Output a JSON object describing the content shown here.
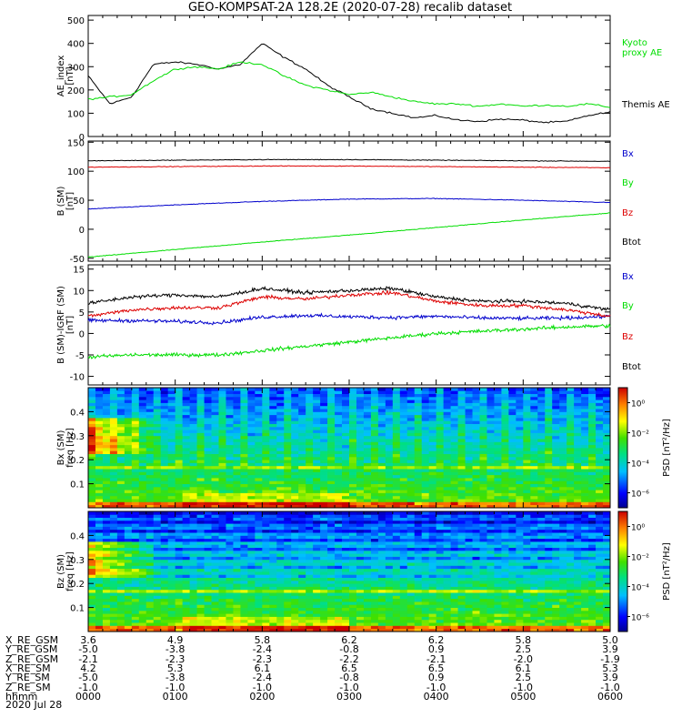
{
  "title": "GEO-KOMPSAT-2A 128.2E (2020-07-28) recalib dataset",
  "panels": {
    "ae": {
      "ylabel1": "AE_index",
      "ylabel2": "[nT]",
      "yticks": [
        "0",
        "100",
        "200",
        "300",
        "400",
        "500"
      ],
      "legend": [
        {
          "text": "Kyoto",
          "color": "#00dd00"
        },
        {
          "text": "proxy AE",
          "color": "#00dd00"
        },
        {
          "text": "Themis AE",
          "color": "#000000"
        }
      ]
    },
    "bsm": {
      "ylabel1": "B (SM)",
      "ylabel2": "[nT]",
      "yticks": [
        "-50",
        "0",
        "50",
        "100",
        "150"
      ],
      "legend": [
        {
          "text": "Bx",
          "color": "#0000cc"
        },
        {
          "text": "By",
          "color": "#00dd00"
        },
        {
          "text": "Bz",
          "color": "#dd0000"
        },
        {
          "text": "Btot",
          "color": "#000000"
        }
      ]
    },
    "bigrf": {
      "ylabel1": "B (SM)-IGRF (SM)",
      "ylabel2": "[nT]",
      "yticks": [
        "-10",
        "-5",
        "0",
        "5",
        "10",
        "15"
      ],
      "legend": [
        {
          "text": "Bx",
          "color": "#0000cc"
        },
        {
          "text": "By",
          "color": "#00dd00"
        },
        {
          "text": "Bz",
          "color": "#dd0000"
        },
        {
          "text": "Btot",
          "color": "#000000"
        }
      ]
    },
    "spec_bx": {
      "ylabel1": "Bx (SM)",
      "ylabel2": "freq [Hz]",
      "yticks": [
        "0.1",
        "0.2",
        "0.3",
        "0.4"
      ],
      "cbar_label": "PSD [nT²/Hz]",
      "cbar_ticks": [
        "10⁰",
        "10⁻²",
        "10⁻⁴",
        "10⁻⁶"
      ]
    },
    "spec_bz": {
      "ylabel1": "Bz (SM)",
      "ylabel2": "freq [Hz]",
      "yticks": [
        "0.1",
        "0.2",
        "0.3",
        "0.4"
      ],
      "cbar_label": "PSD [nT²/Hz]",
      "cbar_ticks": [
        "10⁰",
        "10⁻²",
        "10⁻⁴",
        "10⁻⁶"
      ]
    }
  },
  "footer": {
    "rows": [
      {
        "label": "X_RE_GSM",
        "values": [
          "3.6",
          "4.9",
          "5.8",
          "6.2",
          "6.2",
          "5.8",
          "5.0"
        ]
      },
      {
        "label": "Y_RE_GSM",
        "values": [
          "-5.0",
          "-3.8",
          "-2.4",
          "-0.8",
          "0.9",
          "2.5",
          "3.9"
        ]
      },
      {
        "label": "Z_RE_GSM",
        "values": [
          "-2.1",
          "-2.3",
          "-2.3",
          "-2.2",
          "-2.1",
          "-2.0",
          "-1.9"
        ]
      },
      {
        "label": "X_RE_SM",
        "values": [
          "4.2",
          "5.3",
          "6.1",
          "6.5",
          "6.5",
          "6.1",
          "5.3"
        ]
      },
      {
        "label": "Y_RE_SM",
        "values": [
          "-5.0",
          "-3.8",
          "-2.4",
          "-0.8",
          "0.9",
          "2.5",
          "3.9"
        ]
      },
      {
        "label": "Z_RE_SM",
        "values": [
          "-1.0",
          "-1.0",
          "-1.0",
          "-1.0",
          "-1.0",
          "-1.0",
          "-1.0"
        ]
      },
      {
        "label": "hhmm",
        "values": [
          "0000",
          "0100",
          "0200",
          "0300",
          "0400",
          "0500",
          "0600"
        ]
      }
    ],
    "date": "2020 Jul 28"
  },
  "chart_data": [
    {
      "type": "line",
      "ylabel": "AE_index [nT]",
      "ylim": [
        0,
        520
      ],
      "x_hours": [
        0,
        0.25,
        0.5,
        0.75,
        1.0,
        1.25,
        1.5,
        1.75,
        2.0,
        2.25,
        2.5,
        2.75,
        3.0,
        3.25,
        3.5,
        3.75,
        4.0,
        4.25,
        4.5,
        4.75,
        5.0,
        5.25,
        5.5,
        5.75,
        6.0
      ],
      "series": [
        {
          "name": "Themis AE",
          "color": "#000000",
          "values": [
            260,
            140,
            170,
            310,
            320,
            310,
            290,
            310,
            400,
            340,
            290,
            220,
            170,
            120,
            100,
            80,
            90,
            70,
            65,
            75,
            70,
            60,
            65,
            90,
            105
          ]
        },
        {
          "name": "Kyoto proxy AE",
          "color": "#00dd00",
          "values": [
            160,
            170,
            180,
            240,
            290,
            300,
            290,
            320,
            310,
            260,
            220,
            200,
            180,
            190,
            170,
            150,
            140,
            140,
            130,
            140,
            130,
            135,
            130,
            140,
            125
          ]
        }
      ]
    },
    {
      "type": "line",
      "ylabel": "B (SM) [nT]",
      "ylim": [
        -55,
        152
      ],
      "x_hours": [
        0,
        1,
        2,
        3,
        4,
        5,
        6
      ],
      "series": [
        {
          "name": "Bx",
          "color": "#0000cc",
          "values": [
            35,
            42,
            48,
            52,
            53,
            50,
            46
          ]
        },
        {
          "name": "By",
          "color": "#00dd00",
          "values": [
            -48,
            -35,
            -22,
            -10,
            3,
            16,
            28
          ]
        },
        {
          "name": "Bz",
          "color": "#dd0000",
          "values": [
            107,
            108,
            109,
            109,
            108,
            107,
            106
          ]
        },
        {
          "name": "Btot",
          "color": "#000000",
          "values": [
            118,
            119,
            120,
            120,
            119,
            118,
            117
          ]
        }
      ]
    },
    {
      "type": "line",
      "ylabel": "B (SM)-IGRF (SM) [nT]",
      "ylim": [
        -12,
        16
      ],
      "x_hours": [
        0,
        0.5,
        1.0,
        1.5,
        2.0,
        2.5,
        3.0,
        3.5,
        4.0,
        4.5,
        5.0,
        5.5,
        6.0
      ],
      "series": [
        {
          "name": "Bx",
          "color": "#0000cc",
          "values": [
            3.0,
            3.0,
            2.8,
            2.5,
            3.8,
            4.2,
            3.9,
            3.7,
            4.0,
            3.6,
            3.5,
            3.6,
            4.0
          ]
        },
        {
          "name": "By",
          "color": "#00dd00",
          "values": [
            -5.5,
            -5.0,
            -5.0,
            -5.0,
            -4.0,
            -3.0,
            -2.0,
            -1.0,
            0.0,
            0.5,
            1.0,
            1.5,
            1.8
          ]
        },
        {
          "name": "Bz",
          "color": "#dd0000",
          "values": [
            4.0,
            5.5,
            6.0,
            6.0,
            8.5,
            8.0,
            9.0,
            9.5,
            7.5,
            6.5,
            6.5,
            5.5,
            4.0
          ]
        },
        {
          "name": "Btot",
          "color": "#000000",
          "values": [
            7.0,
            8.5,
            9.0,
            8.5,
            10.5,
            9.5,
            10.0,
            10.5,
            8.5,
            7.5,
            7.5,
            7.0,
            5.5
          ]
        }
      ]
    },
    {
      "type": "heatmap",
      "ylabel": "Bx (SM) freq [Hz]",
      "ylim": [
        0,
        0.5
      ],
      "colorbar": "PSD [nT²/Hz]",
      "colorbar_range_log10": [
        -7,
        1
      ]
    },
    {
      "type": "heatmap",
      "ylabel": "Bz (SM) freq [Hz]",
      "ylim": [
        0,
        0.5
      ],
      "colorbar": "PSD [nT²/Hz]",
      "colorbar_range_log10": [
        -7,
        1
      ]
    }
  ]
}
